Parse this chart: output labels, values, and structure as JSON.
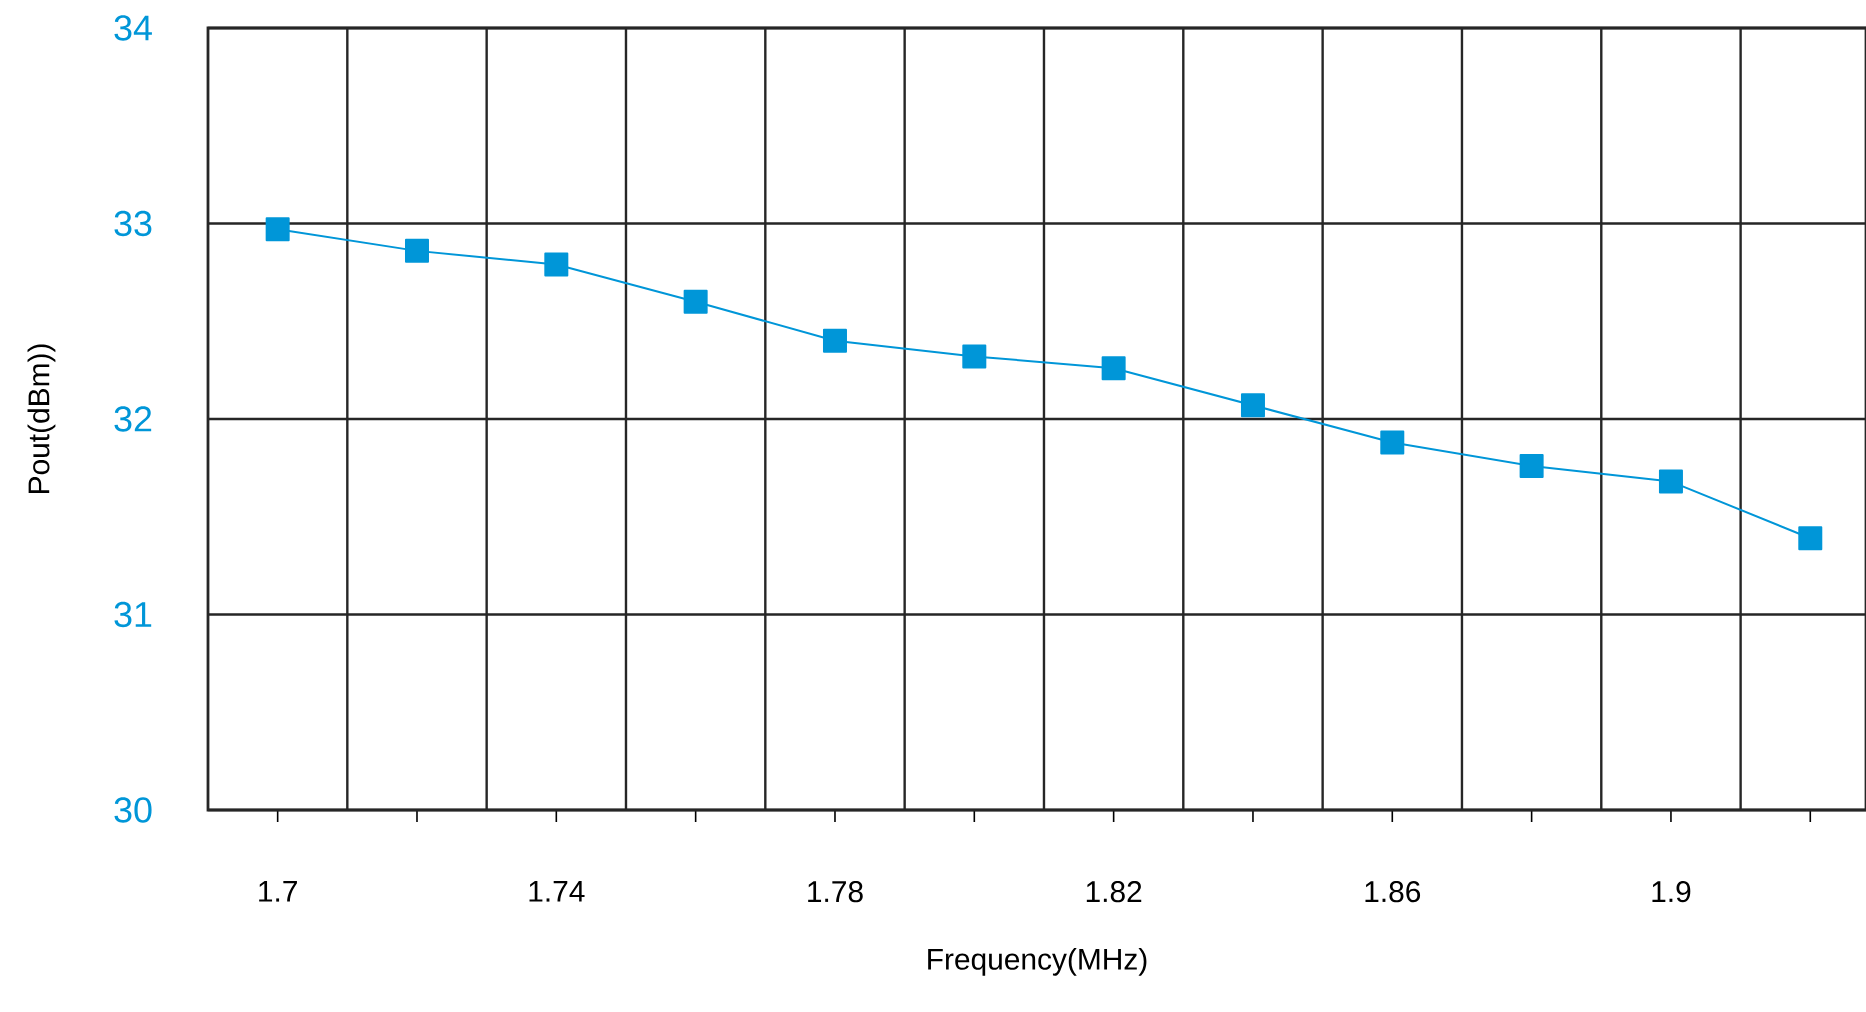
{
  "chart_data": {
    "type": "line",
    "xlabel": "Frequency(MHz)",
    "ylabel": "Pout(dBm))",
    "x": [
      1.7,
      1.72,
      1.74,
      1.76,
      1.78,
      1.8,
      1.82,
      1.84,
      1.86,
      1.88,
      1.9,
      1.92
    ],
    "series": [
      {
        "color": "#0096d8",
        "values": [
          32.97,
          32.86,
          32.79,
          32.6,
          32.4,
          32.32,
          32.26,
          32.07,
          31.88,
          31.76,
          31.68,
          31.39
        ]
      }
    ],
    "xlim": [
      1.69,
      1.928
    ],
    "xticks": [
      1.7,
      {
        "value": 1.72,
        "label": null
      },
      1.74,
      {
        "value": 1.76,
        "label": null
      },
      1.78,
      {
        "value": 1.8,
        "label": null
      },
      1.82,
      {
        "value": 1.84,
        "label": null
      },
      1.86,
      {
        "value": 1.88,
        "label": null
      },
      1.9,
      {
        "value": 1.92,
        "label": null
      }
    ],
    "ylim": [
      30,
      34
    ],
    "yticks": [
      30,
      31,
      32,
      33,
      34
    ],
    "grid": true,
    "marker": "square",
    "line_style": "solid"
  }
}
